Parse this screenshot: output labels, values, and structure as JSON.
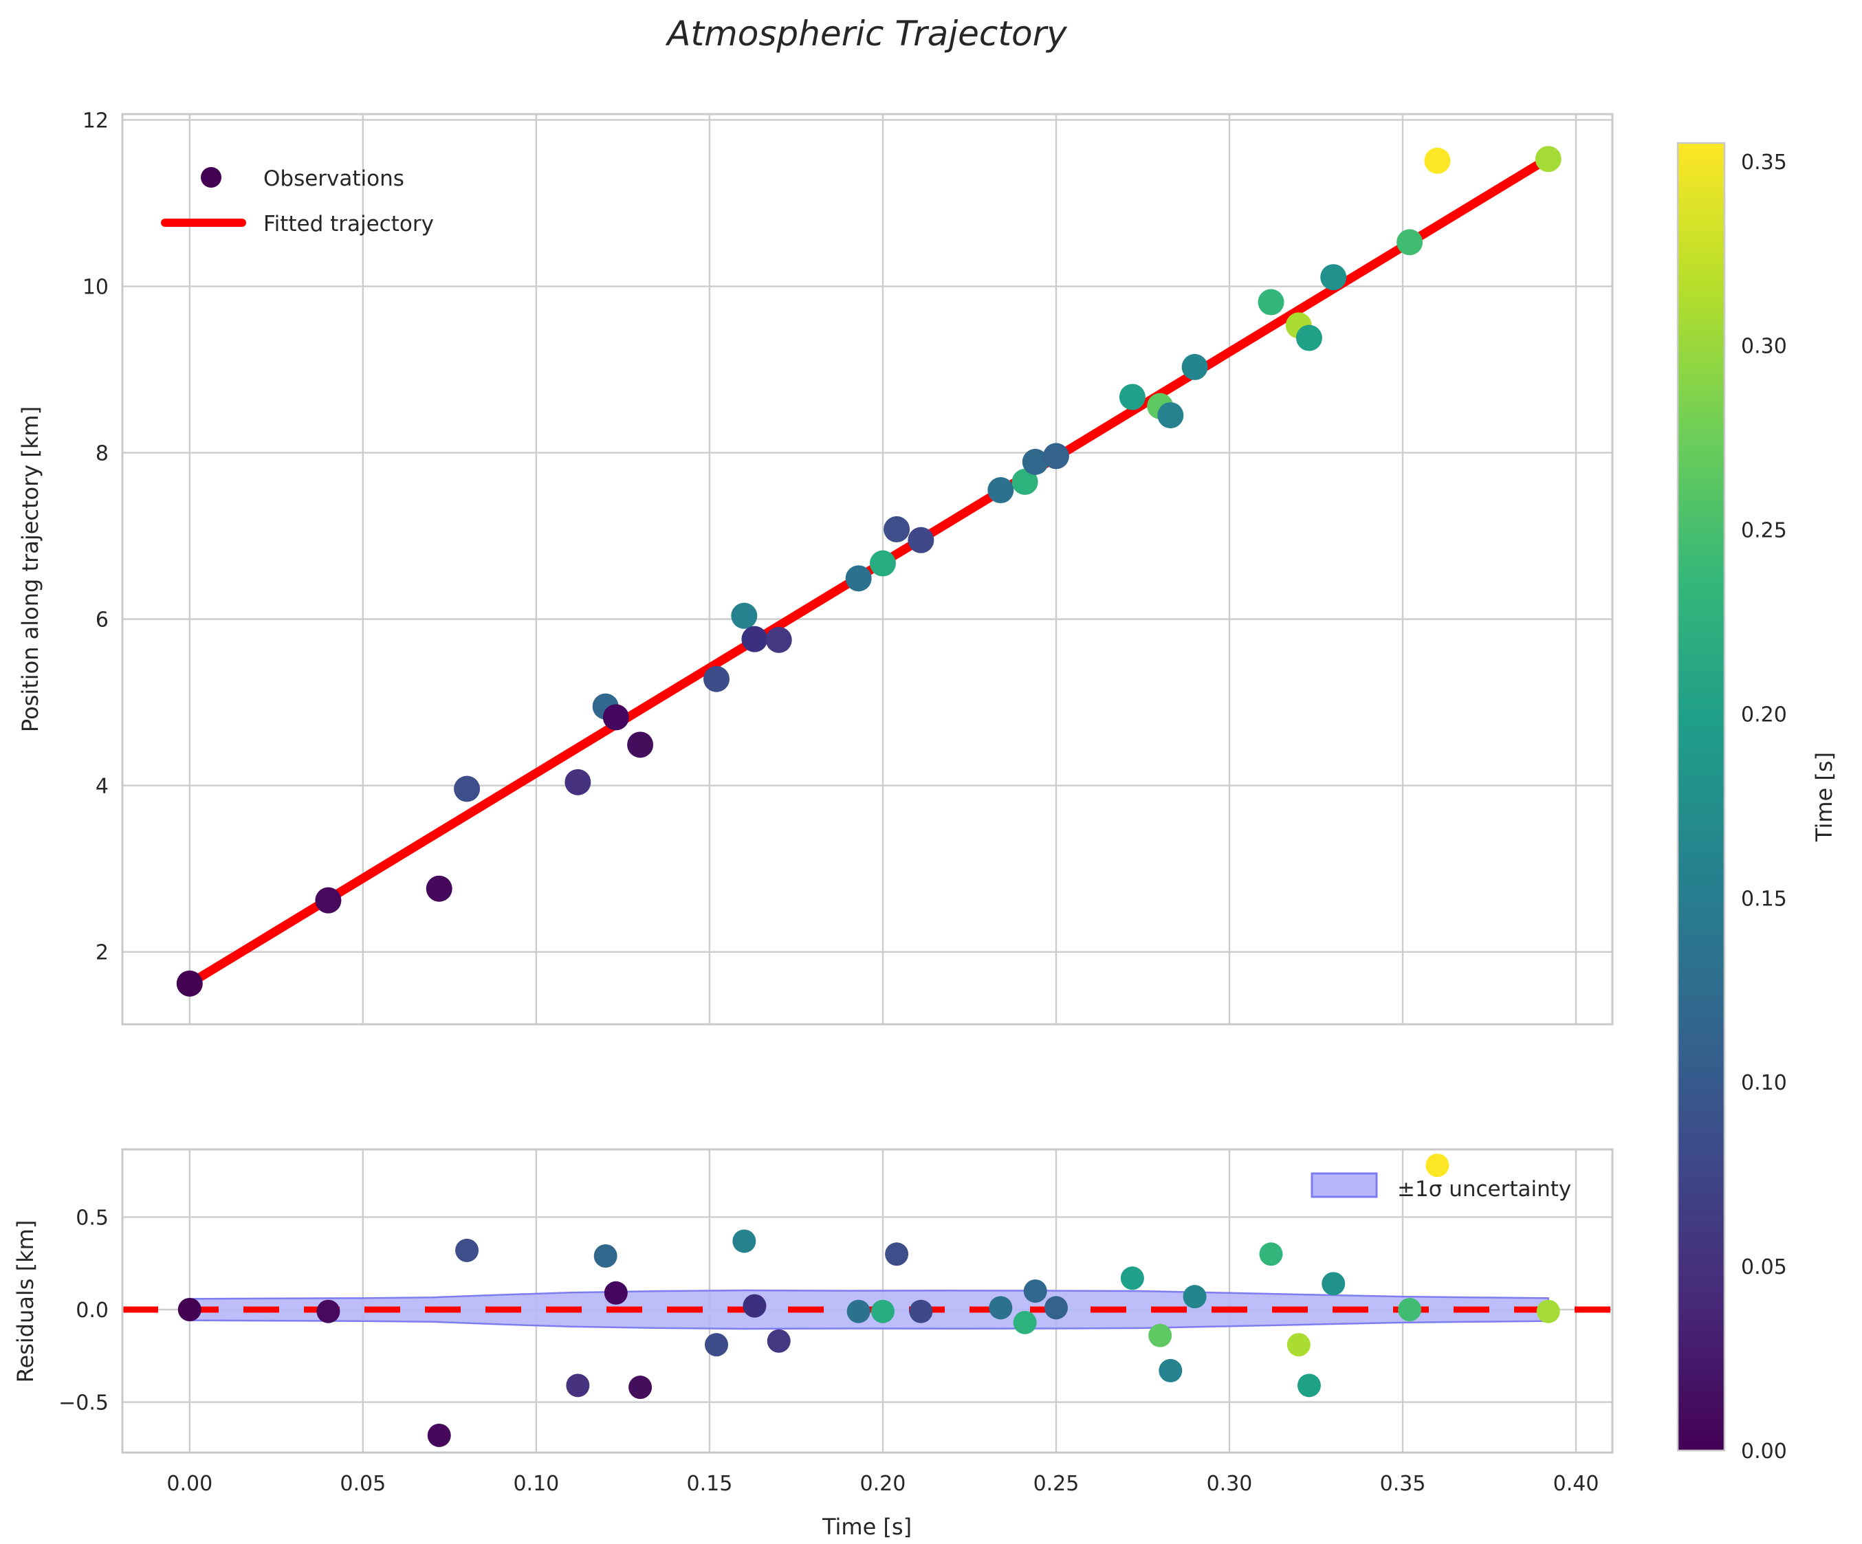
{
  "title": "Atmospheric Trajectory",
  "palette": {
    "background": "#ffffff",
    "grid": "#cccccc",
    "spine": "#c9c9c9",
    "text": "#262626",
    "fit_red": "#ff0000",
    "band_fill": "#b6b6f8",
    "band_edge": "#7d7df0",
    "legend_marker": "#440154"
  },
  "main_plot": {
    "ylabel": "Position along trajectory [km]",
    "yticks": [
      2,
      4,
      6,
      8,
      10,
      12
    ],
    "ytick_labels": [
      "2",
      "4",
      "6",
      "8",
      "10",
      "12"
    ],
    "legend": [
      {
        "label": "Observations",
        "type": "marker"
      },
      {
        "label": "Fitted trajectory",
        "type": "line"
      }
    ]
  },
  "residual_plot": {
    "ylabel": "Residuals [km]",
    "xlabel": "Time [s]",
    "yticks": [
      0.5,
      0.0,
      -0.5
    ],
    "ytick_labels": [
      "0.5",
      "0.0",
      "−0.5"
    ],
    "legend_label": "±1σ uncertainty"
  },
  "x_axis": {
    "ticks": [
      0.0,
      0.05,
      0.1,
      0.15,
      0.2,
      0.25,
      0.3,
      0.35,
      0.4
    ],
    "tick_labels": [
      "0.00",
      "0.05",
      "0.10",
      "0.15",
      "0.20",
      "0.25",
      "0.30",
      "0.35",
      "0.40"
    ],
    "range": [
      -0.0194,
      0.4105
    ]
  },
  "colorbar": {
    "label": "Time [s]",
    "vmin": 0.0,
    "vmax": 0.355,
    "ticks": [
      0.0,
      0.05,
      0.1,
      0.15,
      0.2,
      0.25,
      0.3,
      0.35
    ],
    "tick_labels": [
      "0.00",
      "0.05",
      "0.10",
      "0.15",
      "0.20",
      "0.25",
      "0.30",
      "0.35"
    ],
    "viridis_stops": [
      "#440154",
      "#482878",
      "#3e4989",
      "#31688e",
      "#26828e",
      "#1f9e89",
      "#35b779",
      "#6ece58",
      "#b5de2b",
      "#fde725"
    ]
  },
  "chart_data": {
    "type": "scatter",
    "title": "Atmospheric Trajectory",
    "xlabel": "Time [s]",
    "ylabel_main": "Position along trajectory [km]",
    "ylabel_residual": "Residuals [km]",
    "xlim": [
      -0.0194,
      0.4105
    ],
    "ylim_main": [
      1.13,
      12.07
    ],
    "ylim_residual": [
      -0.773,
      0.866
    ],
    "grid": true,
    "legend_position_main": "upper left",
    "legend_position_residual": "upper right",
    "fit": {
      "intercept_km": 1.62,
      "slope_km_per_s": 25.3,
      "t_start": 0.0,
      "t_end": 0.392,
      "color": "#ff0000"
    },
    "observations": [
      {
        "t": 0.0,
        "y": 1.62,
        "residual": 0.0,
        "color": "#440154"
      },
      {
        "t": 0.04,
        "y": 2.62,
        "residual": -0.01,
        "color": "#46095c"
      },
      {
        "t": 0.072,
        "y": 2.76,
        "residual": -0.68,
        "color": "#45085b"
      },
      {
        "t": 0.08,
        "y": 3.96,
        "residual": 0.32,
        "color": "#3d4e8a"
      },
      {
        "t": 0.112,
        "y": 4.04,
        "residual": -0.41,
        "color": "#46327e"
      },
      {
        "t": 0.12,
        "y": 4.95,
        "residual": 0.29,
        "color": "#31688e"
      },
      {
        "t": 0.123,
        "y": 4.82,
        "residual": 0.09,
        "color": "#44065e"
      },
      {
        "t": 0.13,
        "y": 4.49,
        "residual": -0.42,
        "color": "#430e5c"
      },
      {
        "t": 0.152,
        "y": 5.28,
        "residual": -0.19,
        "color": "#3d4d8a"
      },
      {
        "t": 0.16,
        "y": 6.04,
        "residual": 0.37,
        "color": "#26828e"
      },
      {
        "t": 0.163,
        "y": 5.76,
        "residual": 0.02,
        "color": "#3b2f80"
      },
      {
        "t": 0.17,
        "y": 5.75,
        "residual": -0.17,
        "color": "#453882"
      },
      {
        "t": 0.193,
        "y": 6.49,
        "residual": -0.01,
        "color": "#2c718e"
      },
      {
        "t": 0.2,
        "y": 6.67,
        "residual": -0.01,
        "color": "#27ad81"
      },
      {
        "t": 0.204,
        "y": 7.08,
        "residual": 0.3,
        "color": "#3d4e8a"
      },
      {
        "t": 0.211,
        "y": 6.95,
        "residual": -0.01,
        "color": "#3f4889"
      },
      {
        "t": 0.234,
        "y": 7.55,
        "residual": 0.01,
        "color": "#2c728e"
      },
      {
        "t": 0.241,
        "y": 7.65,
        "residual": -0.07,
        "color": "#2db27d"
      },
      {
        "t": 0.244,
        "y": 7.89,
        "residual": 0.1,
        "color": "#31688e"
      },
      {
        "t": 0.25,
        "y": 7.96,
        "residual": 0.01,
        "color": "#33628d"
      },
      {
        "t": 0.272,
        "y": 8.67,
        "residual": 0.17,
        "color": "#1fa088"
      },
      {
        "t": 0.28,
        "y": 8.56,
        "residual": -0.14,
        "color": "#5ec962"
      },
      {
        "t": 0.283,
        "y": 8.45,
        "residual": -0.33,
        "color": "#26828e"
      },
      {
        "t": 0.29,
        "y": 9.03,
        "residual": 0.07,
        "color": "#24868d"
      },
      {
        "t": 0.312,
        "y": 9.81,
        "residual": 0.3,
        "color": "#32b67c"
      },
      {
        "t": 0.32,
        "y": 9.53,
        "residual": -0.19,
        "color": "#aadc32"
      },
      {
        "t": 0.323,
        "y": 9.38,
        "residual": -0.41,
        "color": "#1fa187"
      },
      {
        "t": 0.33,
        "y": 10.11,
        "residual": 0.14,
        "color": "#21918c"
      },
      {
        "t": 0.352,
        "y": 10.53,
        "residual": 0.0,
        "color": "#3fbc71"
      },
      {
        "t": 0.36,
        "y": 11.51,
        "residual": 0.78,
        "color": "#fde725"
      },
      {
        "t": 0.392,
        "y": 11.53,
        "residual": -0.01,
        "color": "#a5db36"
      }
    ],
    "uncertainty_band": {
      "label": "±1σ uncertainty",
      "profile_t_halfwidth": [
        [
          0.0,
          0.058
        ],
        [
          0.02,
          0.06
        ],
        [
          0.05,
          0.062
        ],
        [
          0.07,
          0.066
        ],
        [
          0.09,
          0.08
        ],
        [
          0.11,
          0.092
        ],
        [
          0.135,
          0.1
        ],
        [
          0.16,
          0.104
        ],
        [
          0.19,
          0.102
        ],
        [
          0.22,
          0.103
        ],
        [
          0.25,
          0.102
        ],
        [
          0.275,
          0.1
        ],
        [
          0.3,
          0.09
        ],
        [
          0.325,
          0.08
        ],
        [
          0.35,
          0.07
        ],
        [
          0.37,
          0.066
        ],
        [
          0.392,
          0.062
        ]
      ]
    }
  }
}
